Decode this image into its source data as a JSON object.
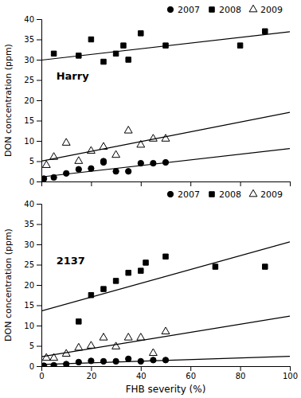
{
  "chart_data": [
    {
      "type": "scatter",
      "ylabel": "DON concentration (ppm)",
      "annotations": [
        {
          "text": "Harry"
        }
      ],
      "series": [
        {
          "name": "2007",
          "color": "black",
          "marker": "circle",
          "x": [
            1,
            5,
            10,
            15,
            20,
            25,
            25,
            30,
            35,
            40,
            45,
            50
          ],
          "values": [
            0.7,
            1.0,
            2.0,
            3.0,
            3.2,
            5.0,
            4.7,
            2.5,
            2.5,
            4.5,
            4.5,
            4.7
          ]
        },
        {
          "name": "2008",
          "color": "black",
          "marker": "square",
          "x": [
            5,
            15,
            20,
            25,
            30,
            33,
            35,
            40,
            50,
            80,
            90
          ],
          "values": [
            31.5,
            31.0,
            35.0,
            29.5,
            31.5,
            33.5,
            30.0,
            36.5,
            33.5,
            33.5,
            37.0
          ]
        },
        {
          "name": "2009",
          "color": "black",
          "marker": "triangle-open",
          "x": [
            2,
            5,
            10,
            15,
            20,
            25,
            30,
            35,
            40,
            45,
            50
          ],
          "values": [
            4.0,
            6.0,
            9.5,
            5.0,
            7.5,
            8.5,
            6.5,
            12.5,
            9.0,
            10.5,
            10.5
          ]
        },
        {
          "type": "line",
          "color": "black",
          "x": [
            0,
            100
          ],
          "values": [
            1.13,
            8.13
          ]
        },
        {
          "type": "line",
          "color": "black",
          "x": [
            0,
            100
          ],
          "values": [
            29.9,
            36.9
          ]
        },
        {
          "type": "line",
          "color": "black",
          "x": [
            0,
            100
          ],
          "values": [
            5.04,
            17.04
          ]
        }
      ],
      "xlim": [
        0,
        100
      ],
      "ylim": [
        0,
        40
      ],
      "xticks": [
        0,
        20,
        40,
        60,
        80,
        100
      ],
      "yticks": [
        0,
        5,
        10,
        15,
        20,
        25,
        30,
        35,
        40
      ],
      "grid": false,
      "legend": "top",
      "tick_labels": "y"
    },
    {
      "type": "scatter",
      "xlabel": "FHB severity (%)",
      "ylabel": "DON concentration (ppm)",
      "annotations": [
        {
          "text": "2137"
        }
      ],
      "series": [
        {
          "name": "2007",
          "color": "black",
          "marker": "circle",
          "x": [
            1,
            5,
            10,
            15,
            20,
            25,
            30,
            35,
            40,
            45,
            50
          ],
          "values": [
            0.1,
            0.2,
            0.5,
            1.0,
            1.3,
            1.2,
            1.2,
            1.8,
            1.2,
            1.5,
            1.5
          ]
        },
        {
          "name": "2008",
          "color": "black",
          "marker": "square",
          "x": [
            15,
            20,
            25,
            30,
            35,
            40,
            42,
            50,
            70,
            90
          ],
          "values": [
            11.0,
            17.5,
            19.0,
            21.0,
            23.0,
            23.5,
            25.5,
            27.0,
            24.5,
            24.5
          ]
        },
        {
          "name": "2009",
          "color": "black",
          "marker": "triangle-open",
          "x": [
            2,
            5,
            10,
            15,
            20,
            25,
            30,
            35,
            40,
            45,
            50
          ],
          "values": [
            2.0,
            2.0,
            3.0,
            4.5,
            5.0,
            7.0,
            4.8,
            7.0,
            7.0,
            3.2,
            8.5
          ]
        },
        {
          "type": "line",
          "color": "black",
          "x": [
            0,
            100
          ],
          "values": [
            0.41,
            2.41
          ]
        },
        {
          "type": "line",
          "color": "black",
          "x": [
            0,
            100
          ],
          "values": [
            13.6,
            30.6
          ]
        },
        {
          "type": "line",
          "color": "black",
          "x": [
            0,
            100
          ],
          "values": [
            2.33,
            12.33
          ]
        }
      ],
      "xlim": [
        0,
        100
      ],
      "ylim": [
        0,
        40
      ],
      "xticks": [
        0,
        20,
        40,
        60,
        80,
        100
      ],
      "yticks": [
        0,
        5,
        10,
        15,
        20,
        25,
        30,
        35,
        40
      ],
      "grid": false,
      "legend": "top"
    }
  ]
}
